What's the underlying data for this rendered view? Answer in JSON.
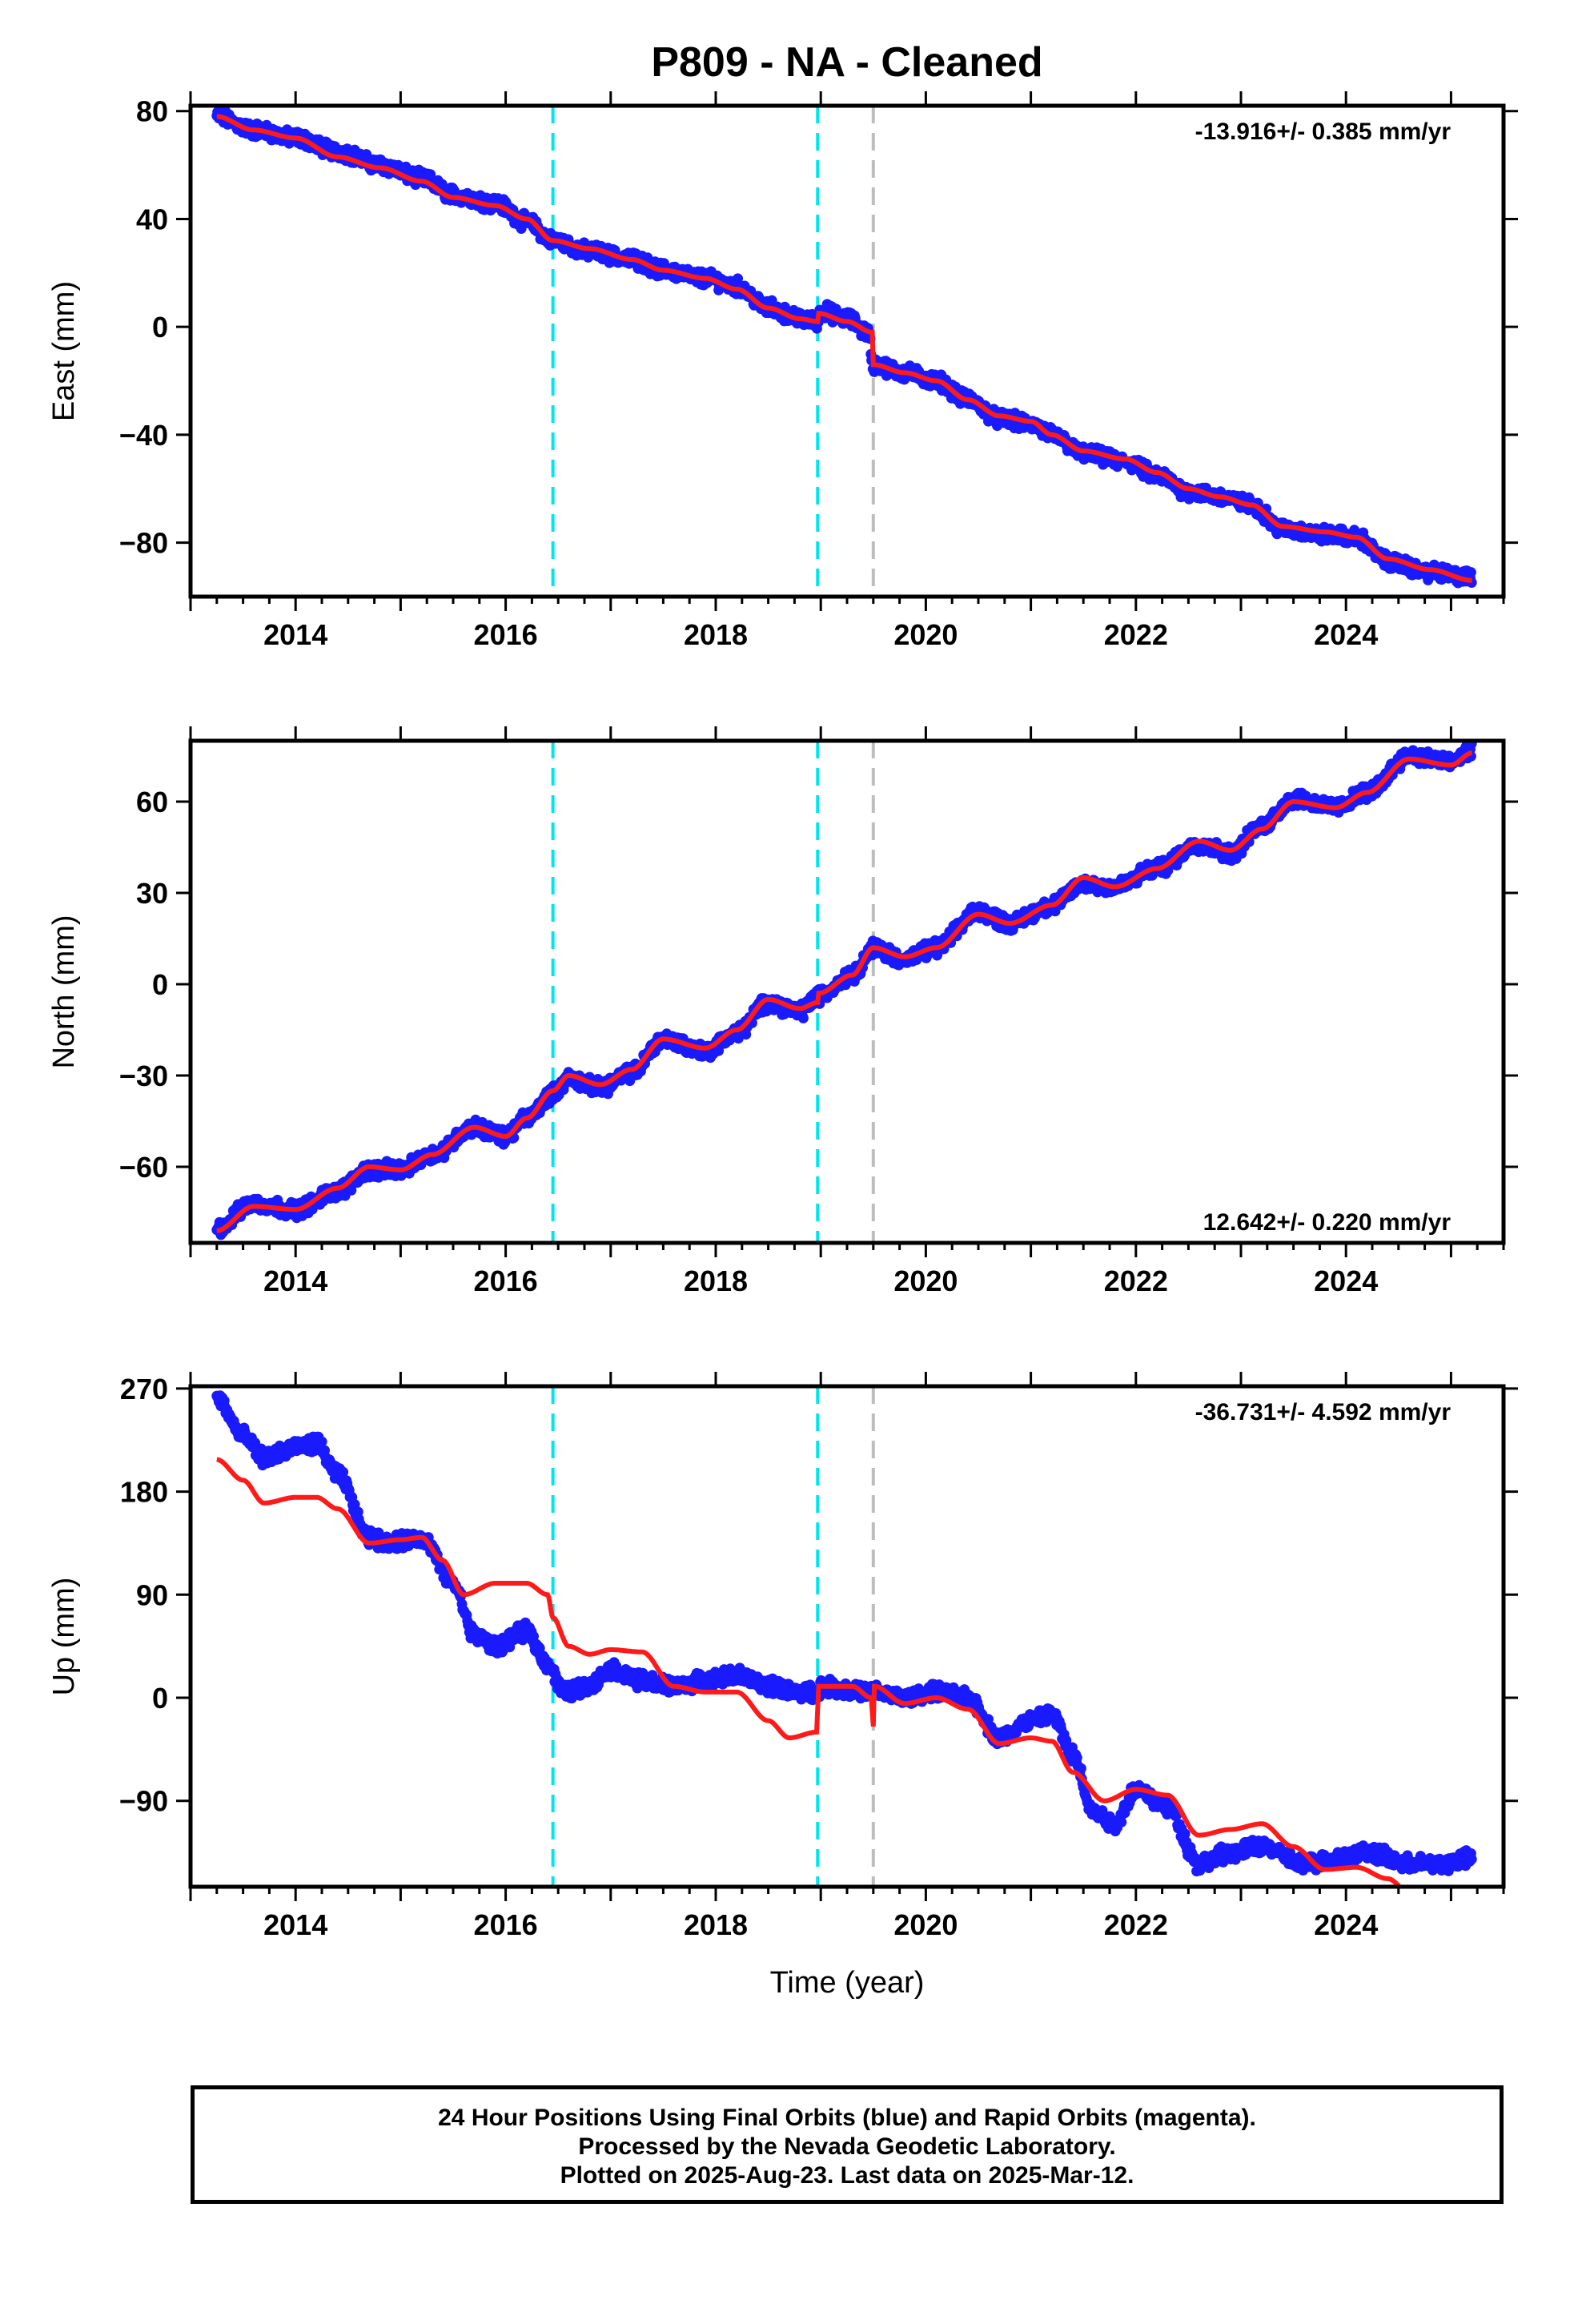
{
  "title": "P809  - NA - Cleaned",
  "xlabel": "Time (year)",
  "x_ticks": [
    "2014",
    "2016",
    "2018",
    "2020",
    "2022",
    "2024"
  ],
  "colors": {
    "data": "#1a1aff",
    "model": "#ff1a1a",
    "event_cyan": "#00e5ee",
    "event_gray": "#bdbdbd"
  },
  "event_lines": [
    {
      "year": 2016.45,
      "color_key": "event_cyan"
    },
    {
      "year": 2018.97,
      "color_key": "event_cyan"
    },
    {
      "year": 2019.5,
      "color_key": "event_gray"
    }
  ],
  "chart_data": [
    {
      "type": "scatter",
      "component": "East",
      "ylabel": "East (mm)",
      "rate_label": "-13.916+/- 0.385 mm/yr",
      "rate_position": "top-right",
      "xlim": [
        2013.0,
        2025.5
      ],
      "ylim": [
        -100,
        82
      ],
      "y_ticks": [
        80,
        40,
        0,
        -40,
        -80
      ],
      "y_tick_labels": [
        "80",
        "40",
        "0",
        "−40",
        "−80"
      ],
      "data_anchors": [
        [
          2013.25,
          78
        ],
        [
          2013.6,
          73
        ],
        [
          2014.0,
          70
        ],
        [
          2014.4,
          65
        ],
        [
          2014.8,
          60
        ],
        [
          2015.2,
          55
        ],
        [
          2015.5,
          49
        ],
        [
          2015.9,
          46
        ],
        [
          2016.2,
          39
        ],
        [
          2016.45,
          32
        ],
        [
          2016.8,
          28
        ],
        [
          2017.2,
          25
        ],
        [
          2017.5,
          21
        ],
        [
          2017.9,
          18
        ],
        [
          2018.2,
          15
        ],
        [
          2018.5,
          7
        ],
        [
          2018.8,
          3
        ],
        [
          2018.97,
          2
        ],
        [
          2019.0,
          6
        ],
        [
          2019.25,
          3
        ],
        [
          2019.45,
          -2
        ],
        [
          2019.5,
          -14
        ],
        [
          2019.8,
          -17
        ],
        [
          2020.1,
          -20
        ],
        [
          2020.4,
          -27
        ],
        [
          2020.7,
          -34
        ],
        [
          2021.0,
          -36
        ],
        [
          2021.2,
          -40
        ],
        [
          2021.5,
          -47
        ],
        [
          2021.9,
          -50
        ],
        [
          2022.2,
          -55
        ],
        [
          2022.5,
          -61
        ],
        [
          2022.8,
          -63
        ],
        [
          2023.1,
          -66
        ],
        [
          2023.4,
          -75
        ],
        [
          2023.8,
          -77
        ],
        [
          2024.1,
          -78
        ],
        [
          2024.4,
          -87
        ],
        [
          2024.8,
          -91
        ],
        [
          2025.2,
          -93
        ]
      ],
      "model_anchors": [
        [
          2013.25,
          78
        ],
        [
          2013.6,
          73
        ],
        [
          2014.0,
          70
        ],
        [
          2014.4,
          63
        ],
        [
          2014.8,
          59
        ],
        [
          2015.2,
          54
        ],
        [
          2015.5,
          48
        ],
        [
          2015.9,
          45
        ],
        [
          2016.2,
          40
        ],
        [
          2016.45,
          32
        ],
        [
          2016.8,
          29
        ],
        [
          2017.2,
          25
        ],
        [
          2017.5,
          21
        ],
        [
          2017.9,
          18
        ],
        [
          2018.2,
          14
        ],
        [
          2018.5,
          7
        ],
        [
          2018.8,
          3
        ],
        [
          2018.97,
          2
        ],
        [
          2018.98,
          5
        ],
        [
          2019.25,
          2
        ],
        [
          2019.49,
          -2
        ],
        [
          2019.5,
          -14
        ],
        [
          2019.8,
          -17
        ],
        [
          2020.1,
          -20
        ],
        [
          2020.4,
          -27
        ],
        [
          2020.7,
          -33
        ],
        [
          2021.0,
          -35
        ],
        [
          2021.2,
          -40
        ],
        [
          2021.5,
          -46
        ],
        [
          2021.9,
          -49
        ],
        [
          2022.2,
          -54
        ],
        [
          2022.5,
          -60
        ],
        [
          2022.8,
          -63
        ],
        [
          2023.1,
          -66
        ],
        [
          2023.4,
          -74
        ],
        [
          2023.8,
          -76
        ],
        [
          2024.1,
          -78
        ],
        [
          2024.4,
          -86
        ],
        [
          2024.8,
          -90
        ],
        [
          2025.2,
          -94
        ]
      ]
    },
    {
      "type": "scatter",
      "component": "North",
      "ylabel": "North (mm)",
      "rate_label": "12.642+/- 0.220 mm/yr",
      "rate_position": "bottom-right",
      "xlim": [
        2013.0,
        2025.5
      ],
      "ylim": [
        -85,
        80
      ],
      "y_ticks": [
        60,
        30,
        0,
        -30,
        -60
      ],
      "y_tick_labels": [
        "60",
        "30",
        "0",
        "−30",
        "−60"
      ],
      "data_anchors": [
        [
          2013.25,
          -80
        ],
        [
          2013.6,
          -72
        ],
        [
          2014.0,
          -74
        ],
        [
          2014.4,
          -68
        ],
        [
          2014.7,
          -61
        ],
        [
          2015.0,
          -61
        ],
        [
          2015.3,
          -56
        ],
        [
          2015.7,
          -47
        ],
        [
          2016.0,
          -50
        ],
        [
          2016.2,
          -44
        ],
        [
          2016.45,
          -36
        ],
        [
          2016.6,
          -31
        ],
        [
          2016.9,
          -34
        ],
        [
          2017.2,
          -29
        ],
        [
          2017.5,
          -18
        ],
        [
          2017.9,
          -22
        ],
        [
          2018.2,
          -16
        ],
        [
          2018.5,
          -6
        ],
        [
          2018.8,
          -9
        ],
        [
          2018.97,
          -4
        ],
        [
          2019.3,
          3
        ],
        [
          2019.5,
          12
        ],
        [
          2019.8,
          8
        ],
        [
          2020.1,
          12
        ],
        [
          2020.5,
          24
        ],
        [
          2020.8,
          20
        ],
        [
          2021.2,
          26
        ],
        [
          2021.5,
          33
        ],
        [
          2021.8,
          32
        ],
        [
          2022.2,
          38
        ],
        [
          2022.6,
          46
        ],
        [
          2022.9,
          43
        ],
        [
          2023.2,
          52
        ],
        [
          2023.5,
          61
        ],
        [
          2023.9,
          58
        ],
        [
          2024.2,
          63
        ],
        [
          2024.6,
          75
        ],
        [
          2025.0,
          73
        ],
        [
          2025.2,
          77
        ]
      ],
      "model_anchors": [
        [
          2013.25,
          -81
        ],
        [
          2013.6,
          -73
        ],
        [
          2014.0,
          -74
        ],
        [
          2014.4,
          -67
        ],
        [
          2014.7,
          -60
        ],
        [
          2015.0,
          -61
        ],
        [
          2015.3,
          -56
        ],
        [
          2015.7,
          -47
        ],
        [
          2016.0,
          -50
        ],
        [
          2016.2,
          -44
        ],
        [
          2016.45,
          -35
        ],
        [
          2016.6,
          -30
        ],
        [
          2016.9,
          -33
        ],
        [
          2017.2,
          -28
        ],
        [
          2017.5,
          -18
        ],
        [
          2017.9,
          -21
        ],
        [
          2018.2,
          -15
        ],
        [
          2018.5,
          -5
        ],
        [
          2018.8,
          -8
        ],
        [
          2018.97,
          -6
        ],
        [
          2018.98,
          -3
        ],
        [
          2019.3,
          3
        ],
        [
          2019.5,
          12
        ],
        [
          2019.8,
          9
        ],
        [
          2020.1,
          12
        ],
        [
          2020.5,
          23
        ],
        [
          2020.8,
          20
        ],
        [
          2021.2,
          26
        ],
        [
          2021.5,
          35
        ],
        [
          2021.8,
          32
        ],
        [
          2022.2,
          38
        ],
        [
          2022.6,
          47
        ],
        [
          2022.9,
          44
        ],
        [
          2023.2,
          51
        ],
        [
          2023.5,
          60
        ],
        [
          2023.9,
          58
        ],
        [
          2024.2,
          63
        ],
        [
          2024.6,
          74
        ],
        [
          2025.0,
          72
        ],
        [
          2025.2,
          76
        ]
      ]
    },
    {
      "type": "scatter",
      "component": "Up",
      "ylabel": "Up (mm)",
      "rate_label": "-36.731+/- 4.592 mm/yr",
      "rate_position": "top-right",
      "xlim": [
        2013.0,
        2025.5
      ],
      "ylim": [
        -165,
        272
      ],
      "y_ticks": [
        270,
        180,
        90,
        0,
        -90
      ],
      "y_tick_labels": [
        "270",
        "180",
        "90",
        "0",
        "−90"
      ],
      "data_anchors": [
        [
          2013.25,
          262
        ],
        [
          2013.5,
          228
        ],
        [
          2013.7,
          210
        ],
        [
          2014.0,
          218
        ],
        [
          2014.2,
          222
        ],
        [
          2014.4,
          195
        ],
        [
          2014.7,
          140
        ],
        [
          2014.9,
          135
        ],
        [
          2015.2,
          140
        ],
        [
          2015.5,
          100
        ],
        [
          2015.7,
          55
        ],
        [
          2015.9,
          45
        ],
        [
          2016.2,
          58
        ],
        [
          2016.4,
          30
        ],
        [
          2016.55,
          5
        ],
        [
          2016.8,
          10
        ],
        [
          2017.0,
          25
        ],
        [
          2017.3,
          15
        ],
        [
          2017.6,
          10
        ],
        [
          2017.9,
          15
        ],
        [
          2018.2,
          20
        ],
        [
          2018.5,
          10
        ],
        [
          2018.8,
          5
        ],
        [
          2018.97,
          5
        ],
        [
          2019.0,
          10
        ],
        [
          2019.5,
          5
        ],
        [
          2019.8,
          0
        ],
        [
          2020.1,
          5
        ],
        [
          2020.4,
          0
        ],
        [
          2020.7,
          -35
        ],
        [
          2021.0,
          -20
        ],
        [
          2021.2,
          -15
        ],
        [
          2021.4,
          -50
        ],
        [
          2021.6,
          -100
        ],
        [
          2021.8,
          -110
        ],
        [
          2022.0,
          -80
        ],
        [
          2022.3,
          -95
        ],
        [
          2022.6,
          -145
        ],
        [
          2022.9,
          -135
        ],
        [
          2023.2,
          -130
        ],
        [
          2023.6,
          -145
        ],
        [
          2023.9,
          -140
        ],
        [
          2024.2,
          -135
        ],
        [
          2024.6,
          -145
        ],
        [
          2024.9,
          -145
        ],
        [
          2025.2,
          -140
        ]
      ],
      "model_anchors": [
        [
          2013.25,
          208
        ],
        [
          2013.5,
          190
        ],
        [
          2013.7,
          170
        ],
        [
          2014.0,
          175
        ],
        [
          2014.2,
          175
        ],
        [
          2014.4,
          165
        ],
        [
          2014.7,
          135
        ],
        [
          2015.0,
          138
        ],
        [
          2015.2,
          140
        ],
        [
          2015.4,
          120
        ],
        [
          2015.6,
          90
        ],
        [
          2015.9,
          100
        ],
        [
          2016.2,
          100
        ],
        [
          2016.4,
          90
        ],
        [
          2016.45,
          70
        ],
        [
          2016.6,
          45
        ],
        [
          2016.8,
          38
        ],
        [
          2017.0,
          42
        ],
        [
          2017.3,
          40
        ],
        [
          2017.6,
          10
        ],
        [
          2017.9,
          5
        ],
        [
          2018.2,
          5
        ],
        [
          2018.5,
          -20
        ],
        [
          2018.7,
          -35
        ],
        [
          2018.96,
          -30
        ],
        [
          2018.98,
          10
        ],
        [
          2019.3,
          10
        ],
        [
          2019.48,
          0
        ],
        [
          2019.5,
          -25
        ],
        [
          2019.51,
          10
        ],
        [
          2019.8,
          -5
        ],
        [
          2020.1,
          0
        ],
        [
          2020.4,
          -10
        ],
        [
          2020.7,
          -40
        ],
        [
          2021.0,
          -35
        ],
        [
          2021.2,
          -38
        ],
        [
          2021.4,
          -65
        ],
        [
          2021.7,
          -90
        ],
        [
          2022.0,
          -80
        ],
        [
          2022.3,
          -85
        ],
        [
          2022.6,
          -120
        ],
        [
          2022.9,
          -115
        ],
        [
          2023.2,
          -110
        ],
        [
          2023.5,
          -130
        ],
        [
          2023.8,
          -150
        ],
        [
          2024.1,
          -148
        ],
        [
          2024.4,
          -158
        ],
        [
          2024.6,
          -170
        ]
      ]
    }
  ],
  "footer": {
    "line1": "24 Hour Positions Using Final Orbits (blue) and Rapid Orbits (magenta).",
    "line2": "Processed by the Nevada Geodetic Laboratory.",
    "line3": "Plotted on 2025-Aug-23. Last data on 2025-Mar-12."
  }
}
